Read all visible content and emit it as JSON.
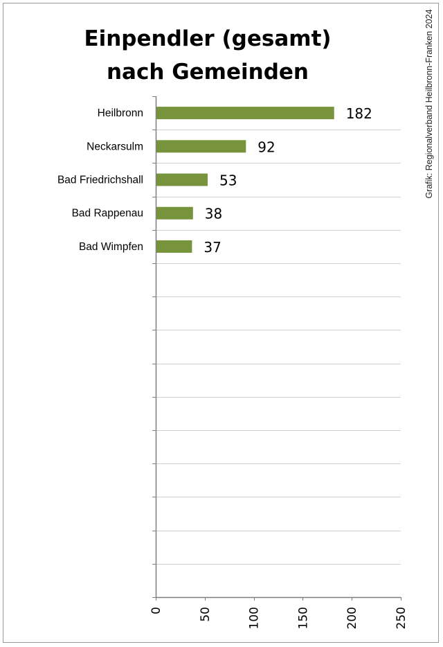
{
  "title": {
    "line1": "Einpendler (gesamt)",
    "line2": "nach Gemeinden"
  },
  "credit": "Grafik: Regionalverband Heilbronn-Franken 2024",
  "colors": {
    "bar": "#77933c",
    "grid": "#d0d0d0",
    "axis": "#7f7f7f",
    "frame": "#9a9a9a"
  },
  "chart_data": {
    "type": "bar",
    "orientation": "horizontal",
    "categories": [
      "Heilbronn",
      "Neckarsulm",
      "Bad Friedrichshall",
      "Bad Rappenau",
      "Bad Wimpfen"
    ],
    "values": [
      182,
      92,
      53,
      38,
      37
    ],
    "value_labels": [
      "182",
      "92",
      "53",
      "38",
      "37"
    ],
    "category_slots": 15,
    "xlim": [
      0,
      250
    ],
    "xticks": [
      0,
      50,
      100,
      150,
      200,
      250
    ],
    "xtick_labels": [
      "0",
      "50",
      "100",
      "150",
      "200",
      "250"
    ],
    "xtick_label_orientation": "rotated-vertical",
    "grid": true,
    "legend": "none"
  }
}
